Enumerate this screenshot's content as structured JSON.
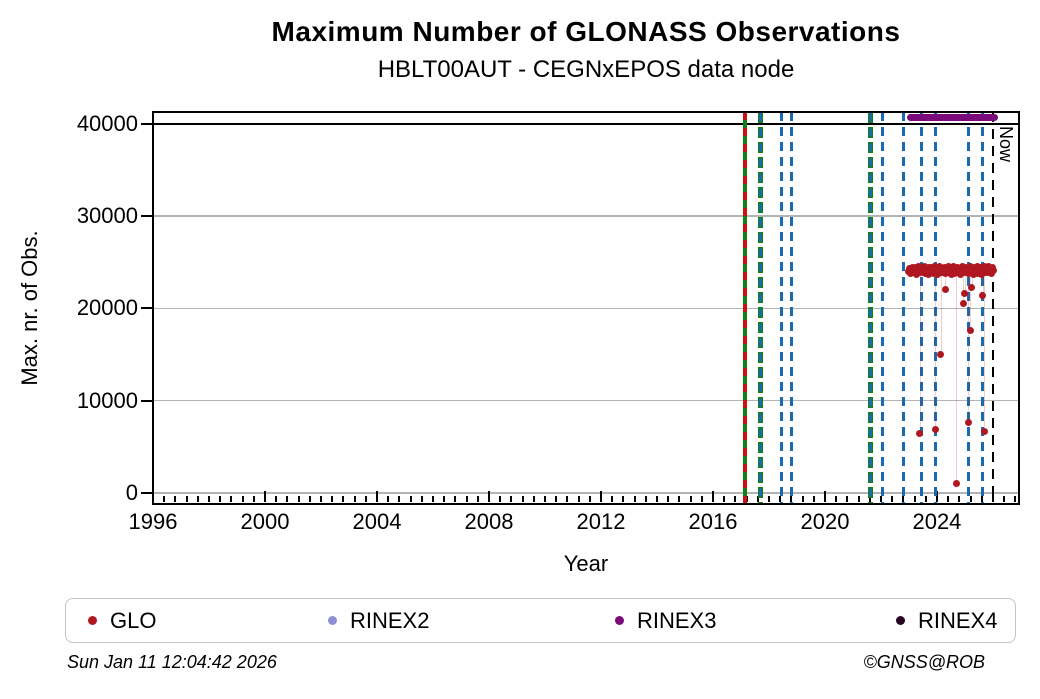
{
  "footer": {
    "timestamp": "Sun Jan 11 12:04:42 2026",
    "copyright": "©GNSS@ROB"
  },
  "chart_data": {
    "type": "scatter",
    "title": "Maximum Number of GLONASS Observations",
    "subtitle": "HBLT00AUT - CEGNxEPOS data node",
    "xlabel": "Year",
    "ylabel": "Max. nr. of Obs.",
    "x_range": [
      1996.0,
      2026.93
    ],
    "y_range": [
      -1200,
      41300
    ],
    "x_ticks": [
      1996,
      2000,
      2004,
      2008,
      2012,
      2016,
      2020,
      2024
    ],
    "x_minor_step": 0.4,
    "y_ticks": [
      0,
      10000,
      20000,
      30000,
      40000
    ],
    "grid": "horizontal-only",
    "max_obs_line": 40000,
    "now_line": {
      "year": 2026.0,
      "label": "Now",
      "color": "#000000"
    },
    "colors": {
      "glo": "#b01821",
      "rinex2": "#8f8fd4",
      "rinex3": "#7a0a7a",
      "rinex4": "#250525",
      "event_blue": "#1a6ab0",
      "event_green": "#128012",
      "event_red": "#cc1111"
    },
    "event_lines": [
      {
        "year": 2017.14,
        "style": "green-red"
      },
      {
        "year": 2017.68,
        "style": "green-blue"
      },
      {
        "year": 2018.46,
        "style": "blue"
      },
      {
        "year": 2018.79,
        "style": "blue"
      },
      {
        "year": 2021.61,
        "style": "green-blue"
      },
      {
        "year": 2022.07,
        "style": "blue"
      },
      {
        "year": 2022.79,
        "style": "blue"
      },
      {
        "year": 2023.46,
        "style": "blue"
      },
      {
        "year": 2023.93,
        "style": "blue"
      },
      {
        "year": 2025.11,
        "style": "blue"
      },
      {
        "year": 2025.64,
        "style": "blue"
      }
    ],
    "legend": {
      "items": [
        {
          "label": "GLO",
          "color": "#b01821"
        },
        {
          "label": "RINEX2",
          "color": "#8f8fd4"
        },
        {
          "label": "RINEX3",
          "color": "#7a0a7a"
        },
        {
          "label": "RINEX4",
          "color": "#250525"
        }
      ]
    },
    "series": [
      {
        "name": "GLO",
        "type": "points",
        "color": "#b01821",
        "points": [
          [
            2022.98,
            24050
          ],
          [
            2023.015,
            24300
          ],
          [
            2023.05,
            23800
          ],
          [
            2023.085,
            24200
          ],
          [
            2023.12,
            24450
          ],
          [
            2023.155,
            23900
          ],
          [
            2023.19,
            24150
          ],
          [
            2023.225,
            24400
          ],
          [
            2023.26,
            23700
          ],
          [
            2023.295,
            24250
          ],
          [
            2023.33,
            24500
          ],
          [
            2023.365,
            23850
          ],
          [
            2023.4,
            24100
          ],
          [
            2023.435,
            24350
          ],
          [
            2023.47,
            23950
          ],
          [
            2023.505,
            24200
          ],
          [
            2023.54,
            24550
          ],
          [
            2023.575,
            23750
          ],
          [
            2023.61,
            24300
          ],
          [
            2023.645,
            24000
          ],
          [
            2023.68,
            24400
          ],
          [
            2023.715,
            23650
          ],
          [
            2023.75,
            24150
          ],
          [
            2023.785,
            24450
          ],
          [
            2023.82,
            23900
          ],
          [
            2023.855,
            24250
          ],
          [
            2023.89,
            23800
          ],
          [
            2023.925,
            24500
          ],
          [
            2023.96,
            24050
          ],
          [
            2023.995,
            24350
          ],
          [
            2024.03,
            23700
          ],
          [
            2024.065,
            24200
          ],
          [
            2024.1,
            24600
          ],
          [
            2024.135,
            23950
          ],
          [
            2024.17,
            24300
          ],
          [
            2024.205,
            23850
          ],
          [
            2024.24,
            24100
          ],
          [
            2024.275,
            24450
          ],
          [
            2024.31,
            23750
          ],
          [
            2024.345,
            24250
          ],
          [
            2024.38,
            24000
          ],
          [
            2024.415,
            24550
          ],
          [
            2024.45,
            23900
          ],
          [
            2024.485,
            24350
          ],
          [
            2024.52,
            23650
          ],
          [
            2024.555,
            24150
          ],
          [
            2024.59,
            24500
          ],
          [
            2024.625,
            23800
          ],
          [
            2024.66,
            24250
          ],
          [
            2024.695,
            24050
          ],
          [
            2024.73,
            24400
          ],
          [
            2024.765,
            23950
          ],
          [
            2024.8,
            24300
          ],
          [
            2024.835,
            23700
          ],
          [
            2024.87,
            24200
          ],
          [
            2024.905,
            24600
          ],
          [
            2024.94,
            23850
          ],
          [
            2024.975,
            24100
          ],
          [
            2025.01,
            24450
          ],
          [
            2025.045,
            23950
          ],
          [
            2025.08,
            24350
          ],
          [
            2025.115,
            23750
          ],
          [
            2025.15,
            24250
          ],
          [
            2025.185,
            24500
          ],
          [
            2025.22,
            23900
          ],
          [
            2025.255,
            24150
          ],
          [
            2025.29,
            23650
          ],
          [
            2025.325,
            24400
          ],
          [
            2025.36,
            24050
          ],
          [
            2025.395,
            24300
          ],
          [
            2025.43,
            23800
          ],
          [
            2025.465,
            24550
          ],
          [
            2025.5,
            24200
          ],
          [
            2025.535,
            23950
          ],
          [
            2025.57,
            24450
          ],
          [
            2025.605,
            23700
          ],
          [
            2025.64,
            24250
          ],
          [
            2025.675,
            24100
          ],
          [
            2025.71,
            24600
          ],
          [
            2025.745,
            23850
          ],
          [
            2025.78,
            24350
          ],
          [
            2025.815,
            23900
          ],
          [
            2025.85,
            24500
          ],
          [
            2025.885,
            24000
          ],
          [
            2025.92,
            24300
          ],
          [
            2025.955,
            23750
          ],
          [
            2025.99,
            24450
          ],
          [
            2026.025,
            24150
          ],
          [
            2023.39,
            6390
          ],
          [
            2023.93,
            6930
          ],
          [
            2024.14,
            15060
          ],
          [
            2024.29,
            22100
          ],
          [
            2024.68,
            975
          ],
          [
            2024.93,
            20590
          ],
          [
            2025.0,
            21670
          ],
          [
            2025.11,
            7590
          ],
          [
            2025.18,
            17660
          ],
          [
            2025.25,
            22300
          ],
          [
            2025.64,
            21450
          ],
          [
            2025.68,
            6610
          ]
        ]
      },
      {
        "name": "RINEX2",
        "type": "points",
        "color": "#8f8fd4",
        "points": []
      },
      {
        "name": "RINEX3",
        "type": "thick-line",
        "color": "#7a0a7a",
        "segment": {
          "x_start": 2023.05,
          "x_end": 2026.06,
          "value": 40750
        }
      },
      {
        "name": "RINEX4",
        "type": "points",
        "color": "#250525",
        "points": []
      }
    ]
  }
}
